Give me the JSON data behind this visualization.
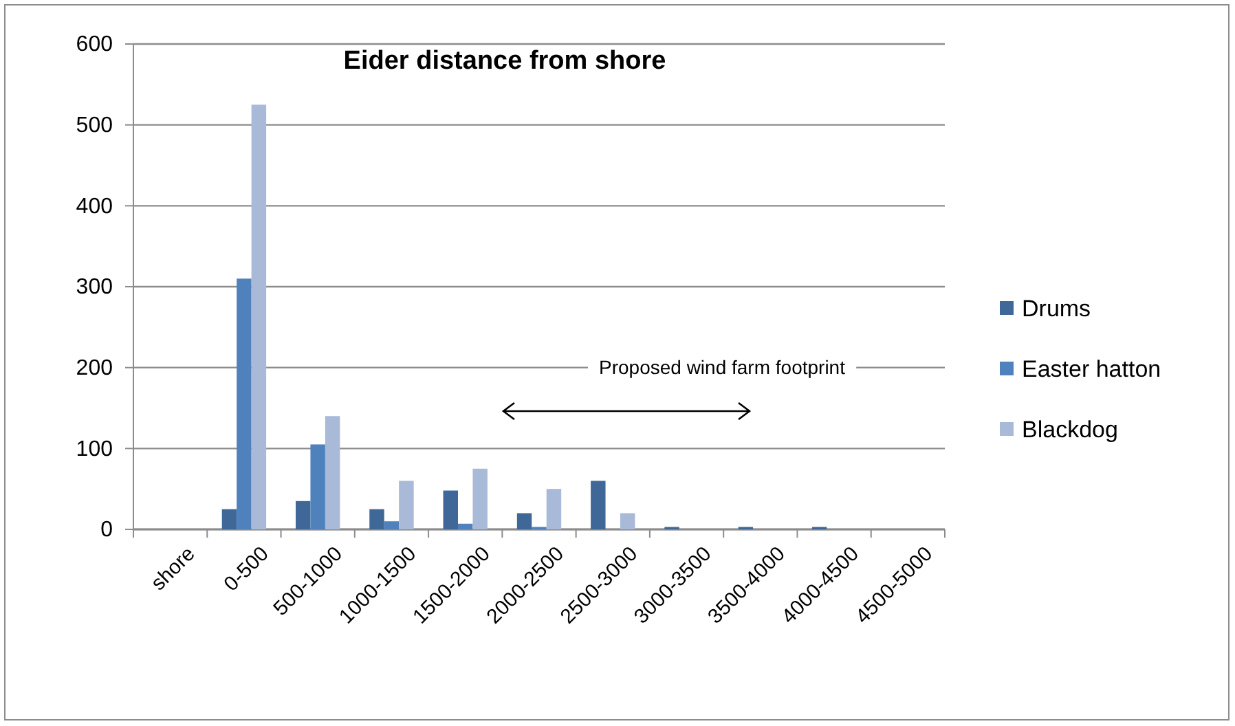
{
  "chart_data": {
    "type": "bar",
    "title": "Eider distance from shore",
    "categories": [
      "shore",
      "0-500",
      "500-1000",
      "1000-1500",
      "1500-2000",
      "2000-2500",
      "2500-3000",
      "3000-3500",
      "3500-4000",
      "4000-4500",
      "4500-5000"
    ],
    "series": [
      {
        "name": "Drums",
        "color": "#3f6899",
        "values": [
          0,
          25,
          35,
          25,
          48,
          20,
          60,
          3,
          3,
          3,
          0
        ]
      },
      {
        "name": "Easter hatton",
        "color": "#4f81bd",
        "values": [
          0,
          310,
          105,
          10,
          7,
          3,
          0,
          0,
          0,
          0,
          0
        ]
      },
      {
        "name": "Blackdog",
        "color": "#a9b9d8",
        "values": [
          0,
          525,
          140,
          60,
          75,
          50,
          20,
          0,
          0,
          0,
          0
        ]
      }
    ],
    "ylim": [
      0,
      600
    ],
    "yticks": [
      0,
      100,
      200,
      300,
      400,
      500,
      600
    ],
    "grid": "y",
    "legend": "right",
    "annotations": [
      "Proposed wind farm footprint"
    ]
  }
}
